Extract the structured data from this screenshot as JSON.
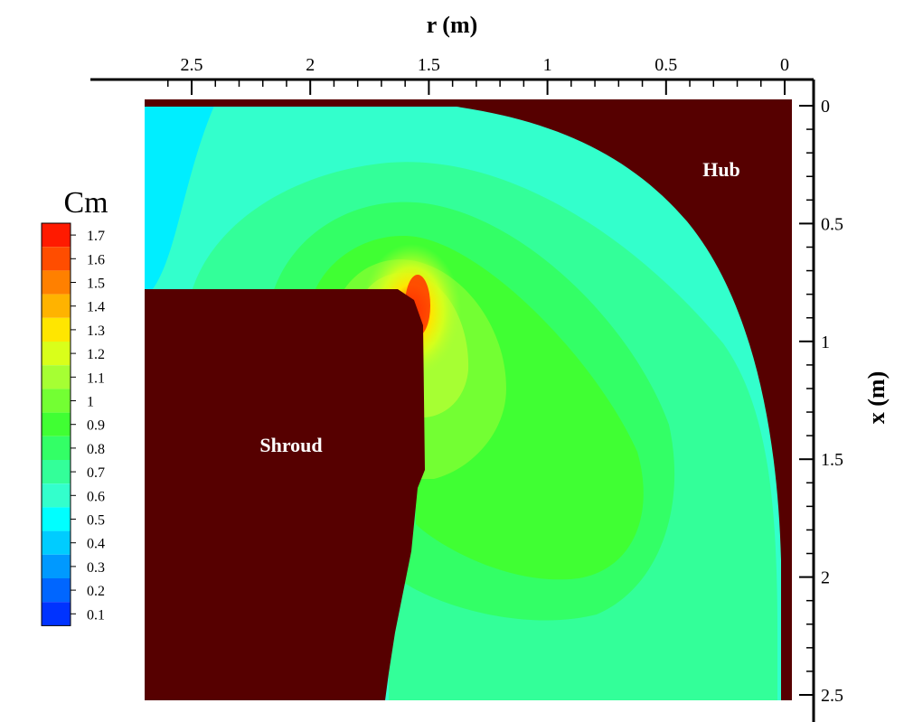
{
  "chart_data": {
    "type": "heatmap",
    "xlabel": "r (m)",
    "ylabel": "x (m)",
    "x_ticks": [
      "2.5",
      "2",
      "1.5",
      "1",
      "0.5",
      "0"
    ],
    "x_tick_values": [
      2.5,
      2,
      1.5,
      1,
      0.5,
      0
    ],
    "y_ticks": [
      "0",
      "0.5",
      "1",
      "1.5",
      "2",
      "2.5"
    ],
    "y_tick_values": [
      0,
      0.5,
      1,
      1.5,
      2,
      2.5
    ],
    "xlim": [
      2.7,
      0
    ],
    "ylim": [
      0,
      2.5
    ],
    "x_axis_position": "top",
    "y_axis_position": "right",
    "grid": false,
    "legend": {
      "title": "Cm",
      "placement": "left",
      "levels": [
        "1.7",
        "1.6",
        "1.5",
        "1.4",
        "1.3",
        "1.2",
        "1.1",
        "1",
        "0.9",
        "0.8",
        "0.7",
        "0.6",
        "0.5",
        "0.4",
        "0.3",
        "0.2",
        "0.1"
      ],
      "colors": [
        "#ff1a00",
        "#ff4d00",
        "#ff8000",
        "#ffb300",
        "#ffe600",
        "#d9ff1a",
        "#a6ff33",
        "#73ff33",
        "#40ff33",
        "#33ff66",
        "#33ff99",
        "#33ffcc",
        "#00ffff",
        "#00ccff",
        "#0099ff",
        "#0066ff",
        "#0033ff"
      ]
    },
    "regions": [
      {
        "label": "Hub",
        "color": "#560000"
      },
      {
        "label": "Shroud",
        "color": "#560000"
      }
    ],
    "peak": {
      "value": 1.7,
      "r": 1.6,
      "x": 0.85
    }
  }
}
